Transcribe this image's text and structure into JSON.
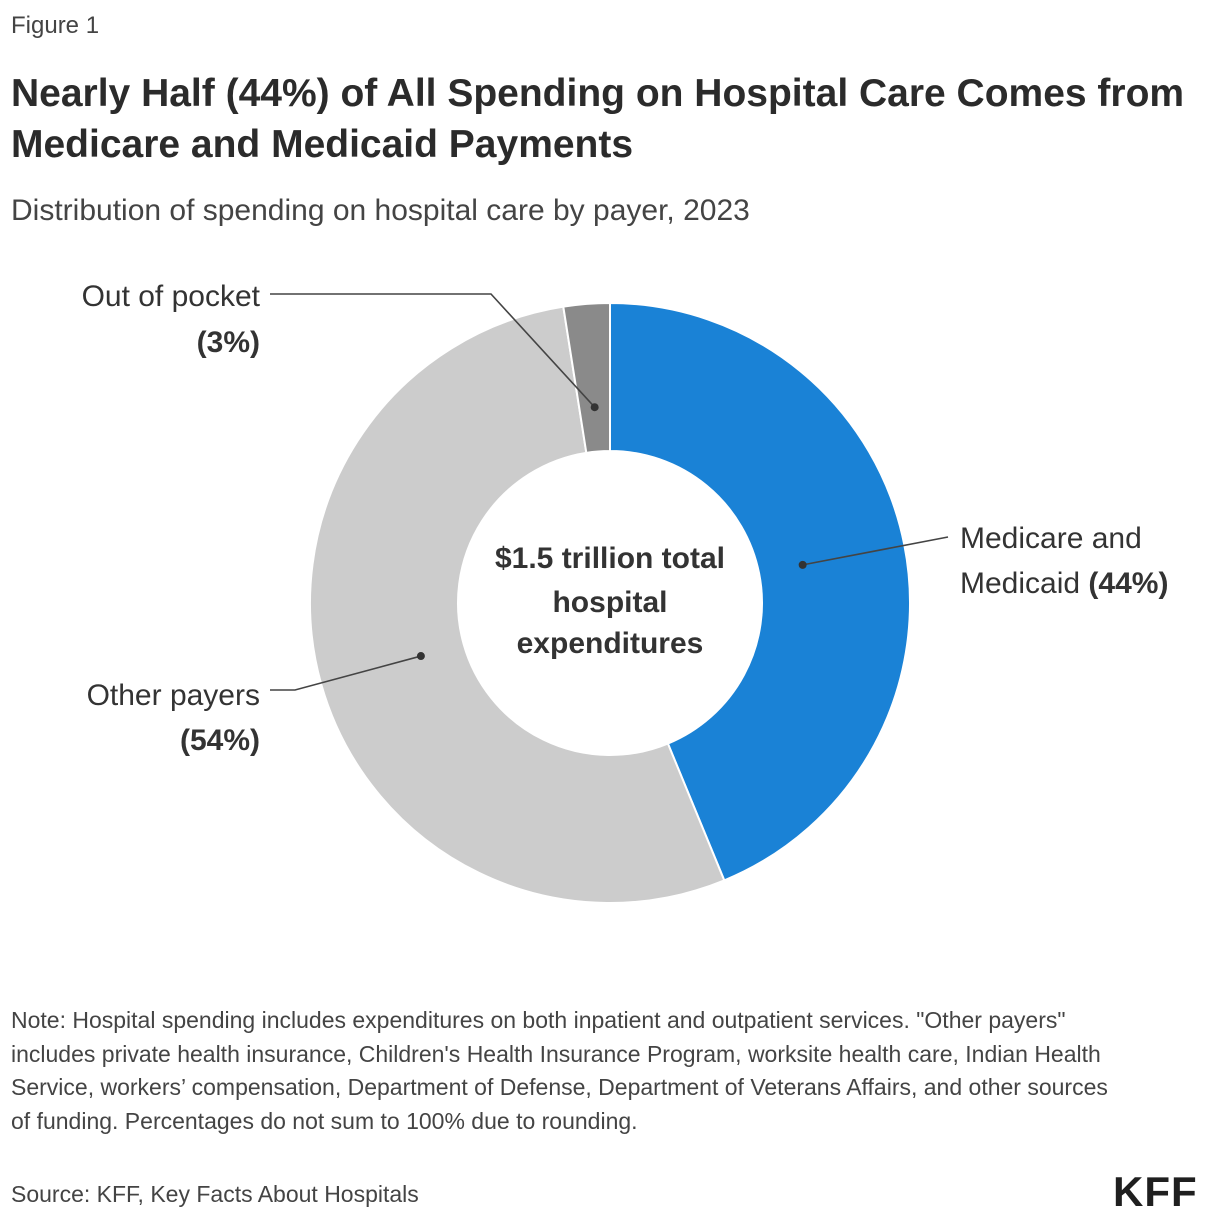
{
  "figure_label": "Figure 1",
  "title": "Nearly Half (44%) of All Spending on Hospital Care Comes from Medicare and Medicaid Payments",
  "subtitle": "Distribution of spending on hospital care by payer, 2023",
  "center_label": [
    "$1.5 trillion total",
    "hospital",
    "expenditures"
  ],
  "chart_data": {
    "type": "pie",
    "donut": true,
    "slices": [
      {
        "key": "medicare",
        "label_lines": [
          "Medicare and",
          "Medicaid"
        ],
        "pct_text": "(44%)",
        "value": 44,
        "color": "#1a82d6"
      },
      {
        "key": "other",
        "label_lines": [
          "Other payers"
        ],
        "pct_text": "(54%)",
        "value": 54,
        "color": "#cccccc"
      },
      {
        "key": "oop",
        "label_lines": [
          "Out of pocket"
        ],
        "pct_text": "(3%)",
        "value": 2.5,
        "color": "#8a8a8a"
      }
    ]
  },
  "note": "Note: Hospital spending includes expenditures on both inpatient and outpatient services. \"Other payers\" includes private health insurance, Children's Health Insurance Program, worksite health care, Indian Health Service, workers’ compensation, Department of Defense, Department of Veterans Affairs, and other sources of funding. Percentages do not sum to 100% due to rounding.",
  "source": "Source: KFF, Key Facts About Hospitals",
  "logo_text": "KFF"
}
